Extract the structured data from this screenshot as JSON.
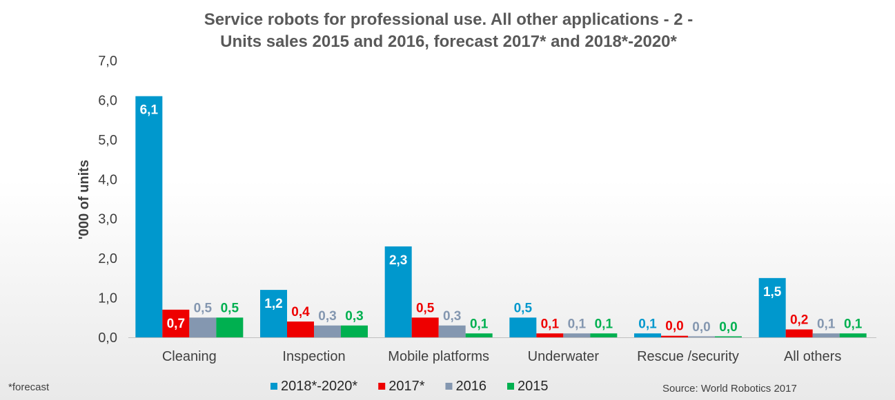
{
  "chart_data": {
    "type": "bar",
    "title": "Service robots for professional use. All other applications - 2 -",
    "subtitle": "Units sales 2015 and 2016, forecast 2017* and 2018*-2020*",
    "ylabel": "'000 of units",
    "ylim": [
      0,
      7
    ],
    "yticks": [
      "0,0",
      "1,0",
      "2,0",
      "3,0",
      "4,0",
      "5,0",
      "6,0",
      "7,0"
    ],
    "grid": false,
    "legend_position": "bottom",
    "categories": [
      "Cleaning",
      "Inspection",
      "Mobile platforms",
      "Underwater",
      "Rescue /security",
      "All others"
    ],
    "series": [
      {
        "name": "2018*-2020*",
        "color": "#0098cd",
        "values": [
          6.1,
          1.2,
          2.3,
          0.5,
          0.1,
          1.5
        ],
        "labels": [
          "6,1",
          "1,2",
          "2,3",
          "0,5",
          "0,1",
          "1,5"
        ]
      },
      {
        "name": "2017*",
        "color": "#ee0000",
        "values": [
          0.7,
          0.4,
          0.5,
          0.1,
          0.04,
          0.2
        ],
        "labels": [
          "0,7",
          "0,4",
          "0,5",
          "0,1",
          "0,0",
          "0,2"
        ]
      },
      {
        "name": "2016",
        "color": "#8497b0",
        "values": [
          0.5,
          0.3,
          0.3,
          0.1,
          0.02,
          0.1
        ],
        "labels": [
          "0,5",
          "0,3",
          "0,3",
          "0,1",
          "0,0",
          "0,1"
        ]
      },
      {
        "name": "2015",
        "color": "#00b050",
        "values": [
          0.5,
          0.3,
          0.1,
          0.1,
          0.02,
          0.1
        ],
        "labels": [
          "0,5",
          "0,3",
          "0,1",
          "0,1",
          "0,0",
          "0,1"
        ]
      }
    ]
  },
  "footnote": "*forecast",
  "source": "Source: World Robotics 2017"
}
